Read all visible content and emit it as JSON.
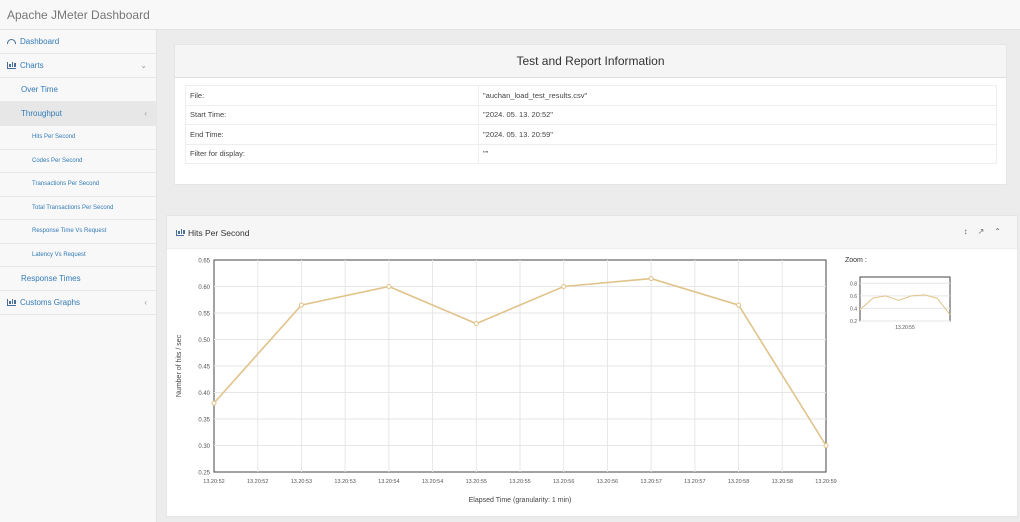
{
  "app": {
    "title": "Apache JMeter Dashboard"
  },
  "sidebar": {
    "items": [
      {
        "label": "Dashboard",
        "level": 0,
        "icon": "dashboard-icon"
      },
      {
        "label": "Charts",
        "level": 0,
        "icon": "bar-chart-icon",
        "arrow": "⌄"
      },
      {
        "label": "Over Time",
        "level": 1
      },
      {
        "label": "Throughput",
        "level": 1,
        "active": true,
        "arrow": "‹"
      },
      {
        "label": "Hits Per Second",
        "level": 2
      },
      {
        "label": "Codes Per Second",
        "level": 2
      },
      {
        "label": "Transactions Per Second",
        "level": 2
      },
      {
        "label": "Total Transactions Per Second",
        "level": 2
      },
      {
        "label": "Response Time Vs Request",
        "level": 2
      },
      {
        "label": "Latency Vs Request",
        "level": 2
      },
      {
        "label": "Response Times",
        "level": 1
      },
      {
        "label": "Customs Graphs",
        "level": 0,
        "icon": "bar-chart-icon",
        "arrow": "‹"
      }
    ]
  },
  "info": {
    "title": "Test and Report Information",
    "rows": [
      {
        "key": "File:",
        "value": "\"auchan_load_test_results.csv\""
      },
      {
        "key": "Start Time:",
        "value": "\"2024. 05. 13. 20:52\""
      },
      {
        "key": "End Time:",
        "value": "\"2024. 05. 13. 20:59\""
      },
      {
        "key": "Filter for display:",
        "value": "\"\""
      }
    ]
  },
  "chart_panel": {
    "title": "Hits Per Second",
    "tools": [
      "↕",
      "↗",
      "⌃"
    ],
    "zoom_label": "Zoom :"
  },
  "chart_data": [
    {
      "type": "line",
      "x": [
        "13.20:52",
        "13.20:53",
        "13.20:54",
        "13.20:55",
        "13.20:56",
        "13.20:57",
        "13.20:58",
        "13.20:59"
      ],
      "series": [
        {
          "values": [
            0.38,
            0.565,
            0.6,
            0.53,
            0.6,
            0.615,
            0.565,
            0.3
          ],
          "color": "#e0c38a"
        }
      ],
      "xticks": [
        "13.20:52",
        "13.20:52",
        "13.20:53",
        "13.20:53",
        "13.20:54",
        "13.20:54",
        "13.20:55",
        "13.20:55",
        "13.20:56",
        "13.20:56",
        "13.20:57",
        "13.20:57",
        "13.20:58",
        "13.20:58",
        "13.20:59"
      ],
      "yticks": [
        "0.25",
        "0.30",
        "0.35",
        "0.40",
        "0.45",
        "0.50",
        "0.55",
        "0.60",
        "0.65"
      ],
      "ylim": [
        0.25,
        0.65
      ],
      "xlabel": "Elapsed Time (granularity: 1 min)",
      "ylabel": "Number of hits / sec",
      "grid": true
    },
    {
      "type": "line",
      "yticks": [
        "0.2",
        "0.4",
        "0.6",
        "0.8"
      ],
      "ylim": [
        0.2,
        0.9
      ],
      "xticks": [
        "13.20:55"
      ],
      "grid": true
    }
  ]
}
